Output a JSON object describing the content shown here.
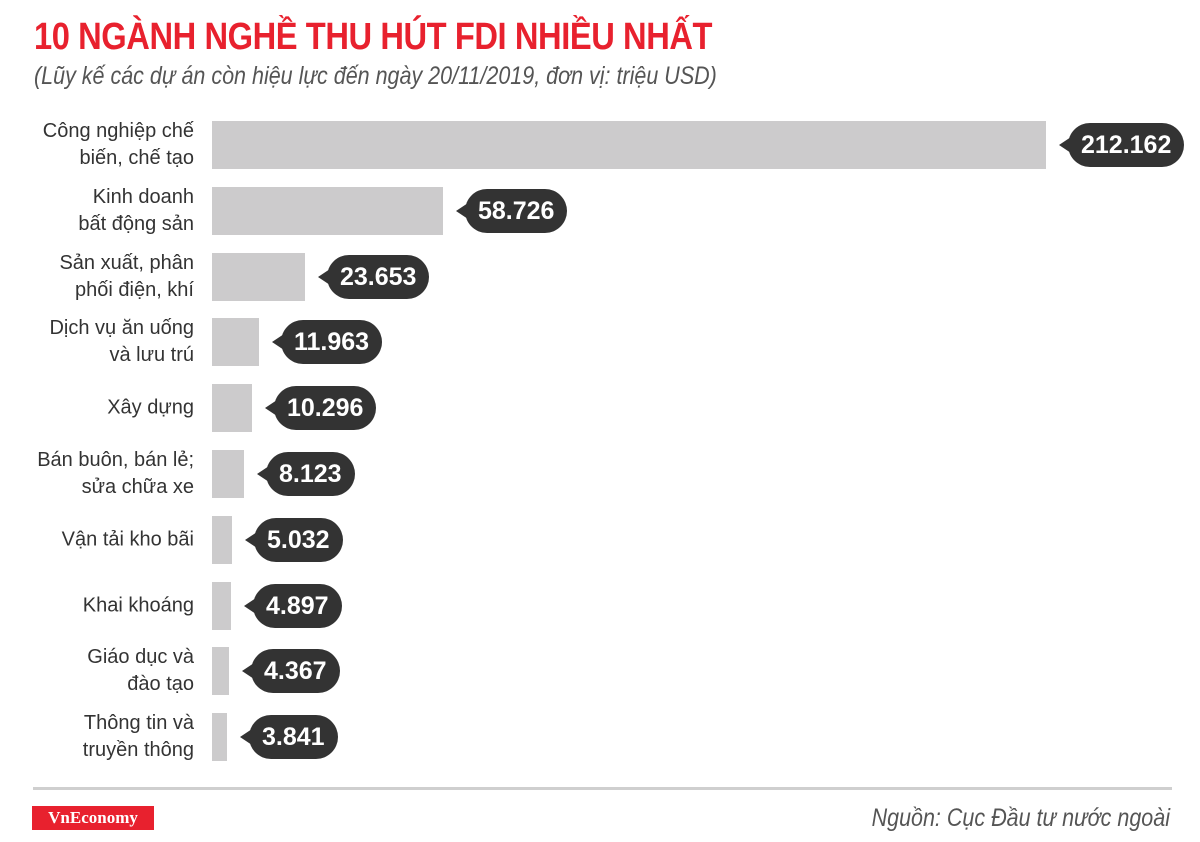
{
  "header": {
    "title": "10 NGÀNH NGHỀ THU HÚT FDI NHIỀU NHẤT",
    "subtitle": "(Lũy kế các dự án còn hiệu lực đến ngày 20/11/2019, đơn vị: triệu USD)"
  },
  "footer": {
    "logo": "VnEconomy",
    "source": "Nguồn: Cục Đầu tư nước ngoài"
  },
  "colors": {
    "title": "#e8212e",
    "bar": "#cccbcc",
    "label_pill": "#333333",
    "logo_bg": "#e8212e"
  },
  "rows": [
    {
      "label": "Công nghiệp chế\nbiến, chế tạo",
      "value_text": "212.162"
    },
    {
      "label": "Kinh doanh\nbất động sản",
      "value_text": "58.726"
    },
    {
      "label": "Sản xuất, phân\nphối điện, khí",
      "value_text": "23.653"
    },
    {
      "label": "Dịch vụ ăn uống\nvà lưu trú",
      "value_text": "11.963"
    },
    {
      "label": "Xây dựng",
      "value_text": "10.296"
    },
    {
      "label": "Bán buôn, bán lẻ;\nsửa chữa xe",
      "value_text": "8.123"
    },
    {
      "label": "Vận tải kho bãi",
      "value_text": "5.032"
    },
    {
      "label": "Khai khoáng",
      "value_text": "4.897"
    },
    {
      "label": "Giáo dục và\nđào tạo",
      "value_text": "4.367"
    },
    {
      "label": "Thông tin và\ntruyền thông",
      "value_text": "3.841"
    }
  ],
  "chart_data": {
    "type": "bar",
    "orientation": "horizontal",
    "title": "10 NGÀNH NGHỀ THU HÚT FDI NHIỀU NHẤT",
    "subtitle": "(Lũy kế các dự án còn hiệu lực đến ngày 20/11/2019, đơn vị: triệu USD)",
    "xlabel": "",
    "ylabel": "",
    "unit": "triệu USD",
    "categories": [
      "Công nghiệp chế biến, chế tạo",
      "Kinh doanh bất động sản",
      "Sản xuất, phân phối điện, khí",
      "Dịch vụ ăn uống và lưu trú",
      "Xây dựng",
      "Bán buôn, bán lẻ; sửa chữa xe",
      "Vận tải kho bãi",
      "Khai khoáng",
      "Giáo dục và đào tạo",
      "Thông tin và truyền thông"
    ],
    "values": [
      212162,
      58726,
      23653,
      11963,
      10296,
      8123,
      5032,
      4897,
      4367,
      3841
    ],
    "data_labels": [
      "212.162",
      "58.726",
      "23.653",
      "11.963",
      "10.296",
      "8.123",
      "5.032",
      "4.897",
      "4.367",
      "3.841"
    ],
    "grid": false,
    "legend": null,
    "source": "Nguồn: Cục Đầu tư nước ngoài"
  }
}
